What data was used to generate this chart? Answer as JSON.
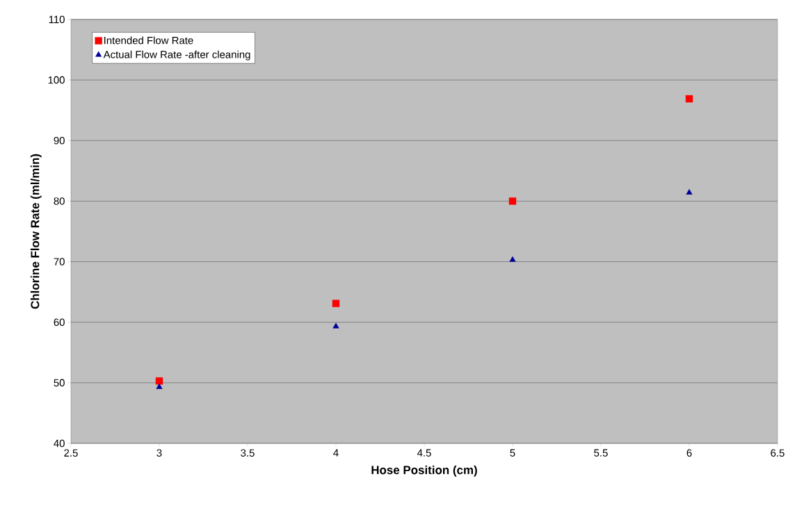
{
  "chart_data": {
    "type": "scatter",
    "xlabel": "Hose Position (cm)",
    "ylabel": "Chlorine Flow Rate (ml/min)",
    "x": [
      3,
      4,
      5,
      6
    ],
    "series": [
      {
        "name": "Intended Flow Rate",
        "color": "#ff0000",
        "marker": "square",
        "values": [
          50.3,
          63.1,
          80,
          96.9
        ]
      },
      {
        "name": "Actual Flow Rate -after cleaning",
        "color": "#000099",
        "marker": "triangle",
        "values": [
          49.3,
          59.3,
          70.3,
          81.4
        ]
      }
    ],
    "xlim": [
      2.5,
      6.5
    ],
    "xticks": [
      2.5,
      3,
      3.5,
      4,
      4.5,
      5,
      5.5,
      6,
      6.5
    ],
    "ylim": [
      40,
      110
    ],
    "yticks": [
      40,
      50,
      60,
      70,
      80,
      90,
      100,
      110
    ],
    "grid": "y",
    "legend": "top left"
  }
}
